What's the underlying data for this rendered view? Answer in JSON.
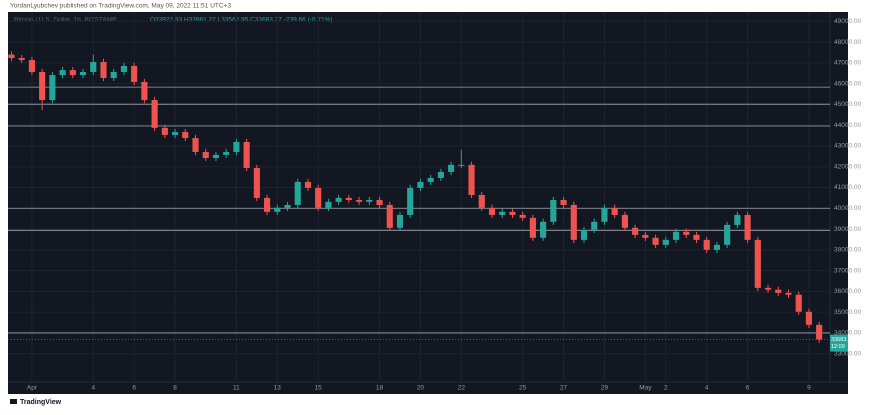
{
  "header": {
    "author_line": "YordanLyubchev published on TradingView.com, May 09, 2022 11:51 UTC+3",
    "footer_logo": "TradingView"
  },
  "chart_data": {
    "type": "candlestick",
    "symbol": "Bitcoin / U.S. Dollar, 1h, BITSTAMP",
    "ohlc_line": "O33922.93 H33981.27 L33562.95 C33683.27 -239.66 (-0.71%)",
    "up_color": "#26a69a",
    "down_color": "#ef5350",
    "background": "#131722",
    "grid": true,
    "x": [
      -1,
      -0.5,
      0,
      0.5,
      1,
      1.5,
      2,
      2.5,
      3,
      3.5,
      4,
      4.5,
      5,
      5.5,
      6,
      6.5,
      7,
      7.5,
      8,
      8.5,
      9,
      9.5,
      10,
      10.5,
      11,
      11.5,
      12,
      12.5,
      13,
      13.5,
      14,
      14.5,
      15,
      15.5,
      16,
      16.5,
      17,
      17.5,
      18,
      18.5,
      19,
      19.5,
      20,
      20.5,
      21,
      21.5,
      22,
      22.5,
      23,
      23.5,
      24,
      24.5,
      25,
      25.5,
      26,
      26.5,
      27,
      27.5,
      28,
      28.5,
      29,
      29.5,
      30,
      30.5,
      31,
      31.5,
      32,
      32.5,
      33,
      33.5,
      34,
      34.5,
      35,
      35.5,
      36,
      36.5,
      37,
      37.5,
      38,
      38.5
    ],
    "open": [
      47400,
      47230,
      47135,
      46560,
      45210,
      46410,
      46650,
      46410,
      46560,
      47040,
      46270,
      46560,
      46850,
      46080,
      45210,
      43870,
      43530,
      43670,
      43380,
      42710,
      42420,
      42570,
      42710,
      43190,
      41940,
      40500,
      39830,
      40020,
      40160,
      41270,
      40980,
      40020,
      40310,
      40500,
      40400,
      40310,
      40400,
      40160,
      39060,
      39680,
      40980,
      41270,
      41460,
      41750,
      42090,
      42090,
      40640,
      40020,
      39680,
      39830,
      39680,
      39540,
      38580,
      39350,
      40400,
      40160,
      38480,
      38960,
      39350,
      40020,
      39680,
      39060,
      38720,
      38580,
      38240,
      38480,
      38870,
      38720,
      38480,
      38000,
      38240,
      39200,
      39680,
      38480,
      36170,
      36080,
      35930,
      35840,
      35020,
      34390
    ],
    "high": [
      47550,
      47380,
      47280,
      46710,
      46560,
      46800,
      46800,
      46710,
      47400,
      47190,
      46710,
      47000,
      47000,
      46230,
      45360,
      44020,
      43820,
      43820,
      43530,
      42860,
      42720,
      42860,
      43340,
      43340,
      42090,
      40650,
      40170,
      40310,
      41420,
      41420,
      41130,
      40460,
      40650,
      40650,
      40550,
      40550,
      40550,
      40310,
      39830,
      41130,
      41420,
      41610,
      41900,
      42240,
      42810,
      42240,
      40790,
      40170,
      39980,
      39980,
      39830,
      39690,
      39500,
      40550,
      40550,
      40310,
      39110,
      39500,
      40170,
      40170,
      39830,
      39210,
      38870,
      38730,
      38630,
      39020,
      39020,
      38870,
      38630,
      38390,
      39350,
      39830,
      39830,
      38630,
      36320,
      36230,
      36080,
      35990,
      35170,
      34540
    ],
    "low": [
      47080,
      46990,
      46410,
      44730,
      45060,
      46260,
      46260,
      46260,
      46410,
      46120,
      46120,
      46410,
      45930,
      45060,
      43720,
      43380,
      43380,
      43230,
      42560,
      42270,
      42270,
      42420,
      42560,
      41790,
      40350,
      39680,
      39680,
      39870,
      40010,
      40830,
      39870,
      39870,
      40160,
      40250,
      40160,
      40160,
      40010,
      38910,
      38910,
      39530,
      40830,
      41120,
      41310,
      41600,
      41940,
      40490,
      39870,
      39530,
      39530,
      39530,
      39390,
      38430,
      38430,
      39200,
      40010,
      38330,
      38330,
      38810,
      39200,
      39530,
      38910,
      38570,
      38430,
      38090,
      38090,
      38330,
      38570,
      38330,
      37850,
      37850,
      38090,
      39050,
      38330,
      36020,
      35930,
      35780,
      35690,
      34870,
      34240,
      33533
    ],
    "close": [
      47230,
      47135,
      46560,
      45210,
      46410,
      46650,
      46410,
      46560,
      47040,
      46270,
      46560,
      46850,
      46080,
      45210,
      43870,
      43530,
      43670,
      43380,
      42710,
      42420,
      42570,
      42710,
      43190,
      41940,
      40500,
      39830,
      40020,
      40160,
      41270,
      40980,
      40020,
      40310,
      40500,
      40400,
      40310,
      40400,
      40160,
      39060,
      39680,
      40980,
      41270,
      41460,
      41750,
      42090,
      42090,
      40640,
      40020,
      39680,
      39830,
      39680,
      39540,
      38580,
      39350,
      40400,
      40160,
      38480,
      38960,
      39350,
      40020,
      39680,
      39060,
      38720,
      38580,
      38240,
      38480,
      38870,
      38720,
      38480,
      38000,
      38240,
      39200,
      39680,
      38480,
      36170,
      36080,
      35930,
      35840,
      35020,
      34390,
      33683.27
    ],
    "levels": [
      45830,
      45010,
      43960,
      40000,
      38940,
      34000
    ],
    "last_price": 33683.27,
    "countdown": "12:09",
    "xlim": [
      -1.17,
      39.03
    ],
    "xticks": [
      {
        "value": 0,
        "label": "Apr"
      },
      {
        "value": 3,
        "label": "4"
      },
      {
        "value": 5,
        "label": "6"
      },
      {
        "value": 7,
        "label": "8"
      },
      {
        "value": 10,
        "label": "11"
      },
      {
        "value": 12,
        "label": "13"
      },
      {
        "value": 14,
        "label": "15"
      },
      {
        "value": 17,
        "label": "18"
      },
      {
        "value": 19,
        "label": "20"
      },
      {
        "value": 21,
        "label": "22"
      },
      {
        "value": 24,
        "label": "25"
      },
      {
        "value": 26,
        "label": "27"
      },
      {
        "value": 28,
        "label": "29"
      },
      {
        "value": 30,
        "label": "May"
      },
      {
        "value": 31,
        "label": "2"
      },
      {
        "value": 33,
        "label": "4"
      },
      {
        "value": 35,
        "label": "6"
      },
      {
        "value": 38,
        "label": "9"
      }
    ],
    "ylim": [
      31640,
      49350
    ],
    "yticks": [
      {
        "value": 33000,
        "label": "33000.00"
      },
      {
        "value": 34000,
        "label": "34000.00"
      },
      {
        "value": 35000,
        "label": "35000.00"
      },
      {
        "value": 36000,
        "label": "36000.00"
      },
      {
        "value": 37000,
        "label": "37000.00"
      },
      {
        "value": 38000,
        "label": "38000.00"
      },
      {
        "value": 39000,
        "label": "39000.00"
      },
      {
        "value": 40000,
        "label": "40000.00"
      },
      {
        "value": 41000,
        "label": "41000.00"
      },
      {
        "value": 42000,
        "label": "42000.00"
      },
      {
        "value": 43000,
        "label": "43000.00"
      },
      {
        "value": 44000,
        "label": "44000.00"
      },
      {
        "value": 45000,
        "label": "45000.00"
      },
      {
        "value": 46000,
        "label": "46000.00"
      },
      {
        "value": 47000,
        "label": "47000.00"
      },
      {
        "value": 48000,
        "label": "48000.00"
      },
      {
        "value": 49000,
        "label": "49000.00"
      }
    ]
  }
}
